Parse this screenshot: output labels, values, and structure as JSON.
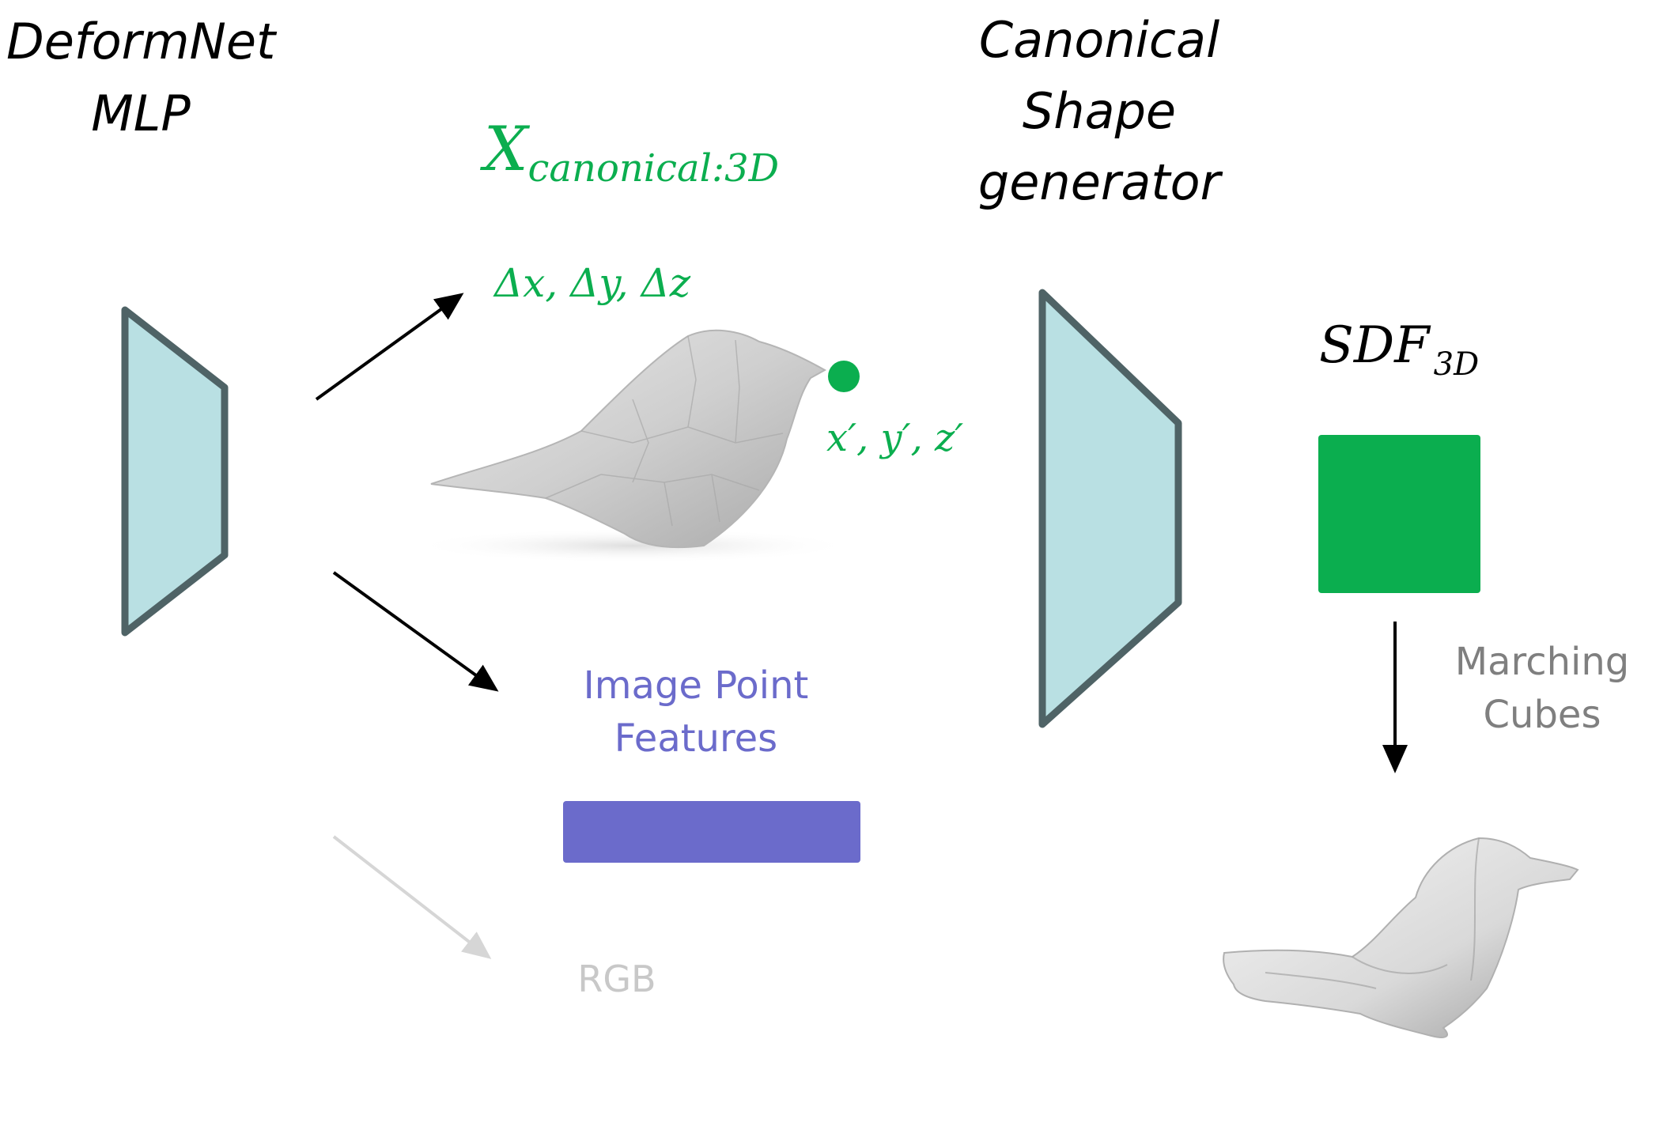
{
  "labels": {
    "deformnet_line1": "DeformNet",
    "deformnet_line2": "MLP",
    "canonical_line1": "Canonical",
    "canonical_line2": "Shape",
    "canonical_line3": "generator",
    "x_canonical_main": "X",
    "x_canonical_sub": "canonical:3D",
    "delta_xyz": "Δx, Δy, Δz",
    "x_prime": "x′, y′, z′",
    "sdf_main": "SDF",
    "sdf_sub": "3D",
    "image_point_line1": "Image Point",
    "image_point_line2": "Features",
    "rgb": "RGB",
    "marching_line1": "Marching",
    "marching_line2": "Cubes"
  },
  "colors": {
    "trapezoid_fill": "#b9e0e3",
    "trapezoid_stroke": "#4f6366",
    "green": "#0bae4f",
    "purple": "#6b6bcb",
    "gray_text": "#7f7f7f",
    "light_gray": "#c8c8c8",
    "arrow": "#000000"
  }
}
